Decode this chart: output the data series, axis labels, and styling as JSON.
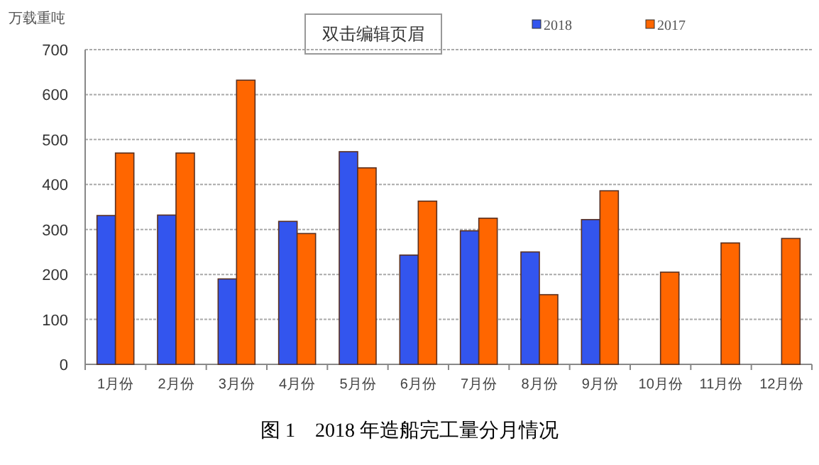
{
  "chart_data": {
    "type": "bar",
    "title": "图 1　2018 年造船完工量分月情况",
    "ylabel": "万载重吨",
    "annotations": [
      "双击编辑页眉"
    ],
    "categories": [
      "1月份",
      "2月份",
      "3月份",
      "4月份",
      "5月份",
      "6月份",
      "7月份",
      "8月份",
      "9月份",
      "10月份",
      "11月份",
      "12月份"
    ],
    "series": [
      {
        "name": "2018",
        "color": "#3355ee",
        "values": [
          331,
          332,
          190,
          318,
          473,
          243,
          297,
          250,
          322,
          null,
          null,
          null
        ]
      },
      {
        "name": "2017",
        "color": "#ff6600",
        "values": [
          470,
          470,
          632,
          291,
          437,
          363,
          325,
          155,
          386,
          205,
          270,
          280
        ]
      }
    ],
    "ylim": [
      0,
      700
    ],
    "yticks": [
      0,
      100,
      200,
      300,
      400,
      500,
      600,
      700
    ],
    "grid": "y",
    "legend": "top right"
  }
}
